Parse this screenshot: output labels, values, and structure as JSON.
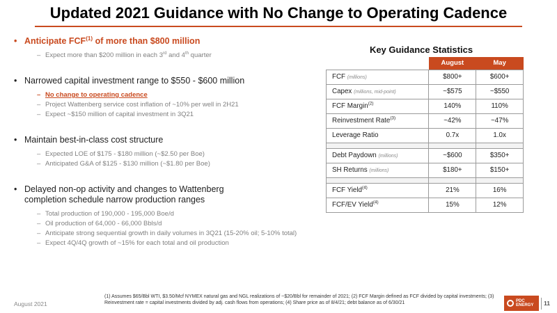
{
  "title": "Updated 2021 Guidance with No Change to Operating Cadence",
  "bullets": [
    {
      "text": "Anticipate FCF",
      "sup": "(1)",
      "text_after": " of more than $800 million",
      "subs": [
        {
          "text": "Expect more than $200 million in each 3",
          "sup1": "rd",
          "mid": " and 4",
          "sup2": "th",
          "after": " quarter"
        }
      ]
    },
    {
      "text": "Narrowed capital investment range to $550 - $600 million",
      "subs": [
        "No change to operating cadence",
        "Project Wattenberg service cost inflation of ~10% per well in 2H21",
        "Expect ~$150 million of capital investment in 3Q21"
      ]
    },
    {
      "text": "Maintain best-in-class cost structure",
      "subs": [
        "Expected LOE of $175 - $180 million (~$2.50 per Boe)",
        "Anticipated G&A of $125 - $130 million (~$1.80 per Boe)"
      ]
    },
    {
      "line1": "Delayed non-op activity and changes to Wattenberg",
      "line2": "completion schedule narrow production ranges",
      "subs": [
        "Total production of 190,000 - 195,000 Boe/d",
        "Oil production of 64,000 - 66,000 Bbls/d",
        "Anticipate strong sequential growth in daily volumes in 3Q21 (15-20% oil; 5-10% total)",
        "Expect 4Q/4Q growth of ~15% for each total and oil production"
      ]
    }
  ],
  "table": {
    "title": "Key Guidance Statistics",
    "columns": [
      "August",
      "May"
    ],
    "rows": [
      {
        "label": "FCF",
        "unit": "(millions)",
        "sup": "",
        "august": "$800+",
        "may": "$600+"
      },
      {
        "label": "Capex",
        "unit": "(millions, mid-point)",
        "sup": "",
        "august": "~$575",
        "may": "~$550"
      },
      {
        "label": "FCF Margin",
        "unit": "",
        "sup": "(2)",
        "august": "140%",
        "may": "110%"
      },
      {
        "label": "Reinvestment Rate",
        "unit": "",
        "sup": "(3)",
        "august": "~42%",
        "may": "~47%"
      },
      {
        "label": "Leverage Ratio",
        "unit": "",
        "sup": "",
        "august": "0.7x",
        "may": "1.0x"
      },
      {
        "label": "Debt Paydown",
        "unit": "(millions)",
        "sup": "",
        "august": "~$600",
        "may": "$350+"
      },
      {
        "label": "SH Returns",
        "unit": "(millions)",
        "sup": "",
        "august": "$180+",
        "may": "$150+"
      },
      {
        "label": "FCF Yield",
        "unit": "",
        "sup": "(4)",
        "august": "21%",
        "may": "16%"
      },
      {
        "label": "FCF/EV Yield",
        "unit": "",
        "sup": "(4)",
        "august": "15%",
        "may": "12%"
      }
    ]
  },
  "footer": {
    "date": "August 2021",
    "footnote": "(1)  Assumes $65/Bbl WTI, $3.50/Mcf NYMEX natural gas and NGL realizations of ~$20/Bbl for remainder of 2021; (2) FCF Margin defined as FCF divided by capital investments; (3) Reinvestment rate = capital investments divided by adj. cash flows from operations; (4) Share price as of 8/4/21; debt balance as of 6/30/21",
    "logo_line1": "PDC",
    "logo_line2": "ENERGY",
    "page": "11"
  },
  "colors": {
    "accent": "#c94a1f"
  }
}
